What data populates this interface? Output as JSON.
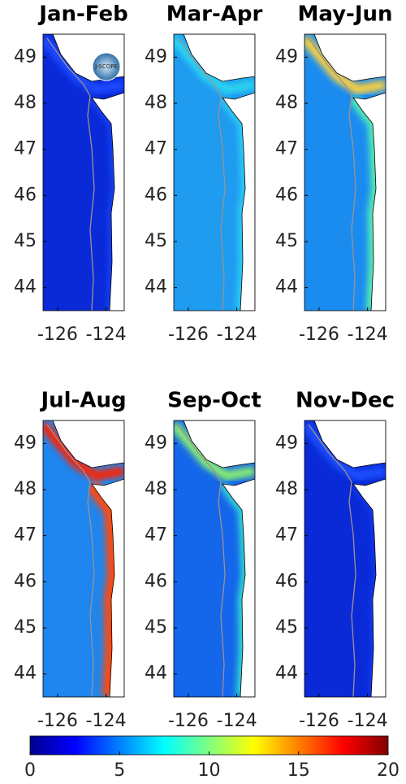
{
  "panels": [
    {
      "title": "Jan-Feb"
    },
    {
      "title": "Mar-Apr"
    },
    {
      "title": "May-Jun"
    },
    {
      "title": "Jul-Aug"
    },
    {
      "title": "Sep-Oct"
    },
    {
      "title": "Nov-Dec"
    }
  ],
  "xlim": [
    -126.6,
    -123.25
  ],
  "xticks": [
    -126,
    -124
  ],
  "ylim": [
    43.5,
    49.5
  ],
  "yticks": [
    44,
    45,
    46,
    47,
    48,
    49
  ],
  "logo": "J-SCOPE",
  "colorbar": {
    "lim": [
      0,
      20
    ],
    "ticks": [
      0,
      5,
      10,
      15,
      20
    ]
  }
}
